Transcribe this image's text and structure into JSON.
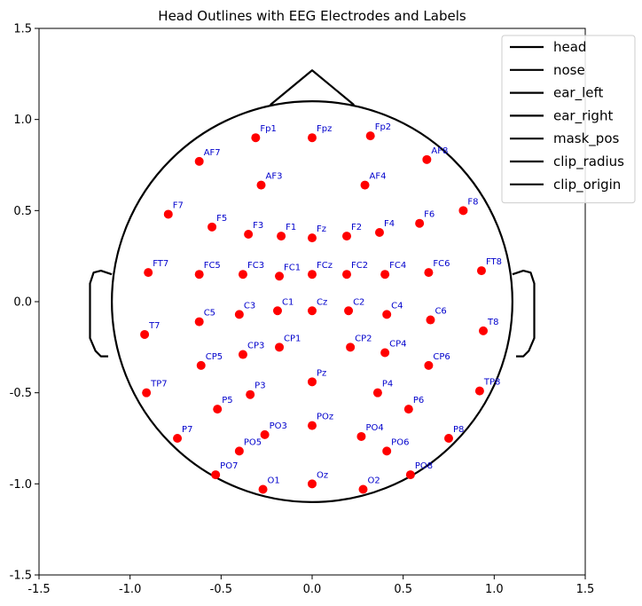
{
  "chart_data": {
    "type": "scatter",
    "title": "Head Outlines with EEG Electrodes and Labels",
    "xlabel": "",
    "ylabel": "",
    "xlim": [
      -1.5,
      1.5
    ],
    "ylim": [
      -1.5,
      1.5
    ],
    "x_ticks": [
      "-1.5",
      "-1.0",
      "-0.5",
      "0.0",
      "0.5",
      "1.0",
      "1.5"
    ],
    "y_ticks": [
      "1.5",
      "1.0",
      "0.5",
      "0.0",
      "-0.5",
      "-1.0",
      "-1.5"
    ],
    "x_tick_values": [
      -1.5,
      -1.0,
      -0.5,
      0.0,
      0.5,
      1.0,
      1.5
    ],
    "y_tick_values": [
      1.5,
      1.0,
      0.5,
      0.0,
      -0.5,
      -1.0,
      -1.5
    ],
    "grid": false,
    "legend_position": "top-right",
    "legend": [
      "head",
      "nose",
      "ear_left",
      "ear_right",
      "mask_pos",
      "clip_radius",
      "clip_origin"
    ],
    "outline_color": "#000000",
    "electrode_color": "#ff0000",
    "label_color": "#0000cc",
    "outlines": {
      "head_radius": 1.1,
      "nose": [
        [
          -0.23,
          1.08
        ],
        [
          0.0,
          1.27
        ],
        [
          0.23,
          1.08
        ]
      ],
      "ear_left": [
        [
          -1.1,
          0.15
        ],
        [
          -1.16,
          0.17
        ],
        [
          -1.2,
          0.16
        ],
        [
          -1.22,
          0.1
        ],
        [
          -1.22,
          -0.2
        ],
        [
          -1.19,
          -0.27
        ],
        [
          -1.16,
          -0.3
        ],
        [
          -1.12,
          -0.3
        ]
      ],
      "ear_right": [
        [
          1.1,
          0.15
        ],
        [
          1.16,
          0.17
        ],
        [
          1.2,
          0.16
        ],
        [
          1.22,
          0.1
        ],
        [
          1.22,
          -0.2
        ],
        [
          1.19,
          -0.27
        ],
        [
          1.16,
          -0.3
        ],
        [
          1.12,
          -0.3
        ]
      ]
    },
    "electrodes": [
      {
        "label": "Fp1",
        "x": -0.31,
        "y": 0.9
      },
      {
        "label": "Fpz",
        "x": 0.0,
        "y": 0.9
      },
      {
        "label": "Fp2",
        "x": 0.32,
        "y": 0.91
      },
      {
        "label": "AF7",
        "x": -0.62,
        "y": 0.77
      },
      {
        "label": "AF8",
        "x": 0.63,
        "y": 0.78
      },
      {
        "label": "AF3",
        "x": -0.28,
        "y": 0.64
      },
      {
        "label": "AF4",
        "x": 0.29,
        "y": 0.64
      },
      {
        "label": "F7",
        "x": -0.79,
        "y": 0.48
      },
      {
        "label": "F5",
        "x": -0.55,
        "y": 0.41
      },
      {
        "label": "F3",
        "x": -0.35,
        "y": 0.37
      },
      {
        "label": "F1",
        "x": -0.17,
        "y": 0.36
      },
      {
        "label": "Fz",
        "x": 0.0,
        "y": 0.35
      },
      {
        "label": "F2",
        "x": 0.19,
        "y": 0.36
      },
      {
        "label": "F4",
        "x": 0.37,
        "y": 0.38
      },
      {
        "label": "F6",
        "x": 0.59,
        "y": 0.43
      },
      {
        "label": "F8",
        "x": 0.83,
        "y": 0.5
      },
      {
        "label": "FT7",
        "x": -0.9,
        "y": 0.16
      },
      {
        "label": "FC5",
        "x": -0.62,
        "y": 0.15
      },
      {
        "label": "FC3",
        "x": -0.38,
        "y": 0.15
      },
      {
        "label": "FC1",
        "x": -0.18,
        "y": 0.14
      },
      {
        "label": "FCz",
        "x": 0.0,
        "y": 0.15
      },
      {
        "label": "FC2",
        "x": 0.19,
        "y": 0.15
      },
      {
        "label": "FC4",
        "x": 0.4,
        "y": 0.15
      },
      {
        "label": "FC6",
        "x": 0.64,
        "y": 0.16
      },
      {
        "label": "FT8",
        "x": 0.93,
        "y": 0.17
      },
      {
        "label": "C5",
        "x": -0.62,
        "y": -0.11
      },
      {
        "label": "C3",
        "x": -0.4,
        "y": -0.07
      },
      {
        "label": "C1",
        "x": -0.19,
        "y": -0.05
      },
      {
        "label": "Cz",
        "x": 0.0,
        "y": -0.05
      },
      {
        "label": "C2",
        "x": 0.2,
        "y": -0.05
      },
      {
        "label": "C4",
        "x": 0.41,
        "y": -0.07
      },
      {
        "label": "C6",
        "x": 0.65,
        "y": -0.1
      },
      {
        "label": "T7",
        "x": -0.92,
        "y": -0.18
      },
      {
        "label": "T8",
        "x": 0.94,
        "y": -0.16
      },
      {
        "label": "CP3",
        "x": -0.38,
        "y": -0.29
      },
      {
        "label": "CP1",
        "x": -0.18,
        "y": -0.25
      },
      {
        "label": "CP2",
        "x": 0.21,
        "y": -0.25
      },
      {
        "label": "CP4",
        "x": 0.4,
        "y": -0.28
      },
      {
        "label": "CP5",
        "x": -0.61,
        "y": -0.35
      },
      {
        "label": "CP6",
        "x": 0.64,
        "y": -0.35
      },
      {
        "label": "TP7",
        "x": -0.91,
        "y": -0.5
      },
      {
        "label": "TP8",
        "x": 0.92,
        "y": -0.49
      },
      {
        "label": "P3",
        "x": -0.34,
        "y": -0.51
      },
      {
        "label": "Pz",
        "x": 0.0,
        "y": -0.44
      },
      {
        "label": "P4",
        "x": 0.36,
        "y": -0.5
      },
      {
        "label": "P5",
        "x": -0.52,
        "y": -0.59
      },
      {
        "label": "P6",
        "x": 0.53,
        "y": -0.59
      },
      {
        "label": "P7",
        "x": -0.74,
        "y": -0.75
      },
      {
        "label": "P8",
        "x": 0.75,
        "y": -0.75
      },
      {
        "label": "POz",
        "x": 0.0,
        "y": -0.68
      },
      {
        "label": "PO3",
        "x": -0.26,
        "y": -0.73
      },
      {
        "label": "PO4",
        "x": 0.27,
        "y": -0.74
      },
      {
        "label": "PO5",
        "x": -0.4,
        "y": -0.82
      },
      {
        "label": "PO6",
        "x": 0.41,
        "y": -0.82
      },
      {
        "label": "PO7",
        "x": -0.53,
        "y": -0.95
      },
      {
        "label": "PO8",
        "x": 0.54,
        "y": -0.95
      },
      {
        "label": "O1",
        "x": -0.27,
        "y": -1.03
      },
      {
        "label": "Oz",
        "x": 0.0,
        "y": -1.0
      },
      {
        "label": "O2",
        "x": 0.28,
        "y": -1.03
      }
    ]
  }
}
